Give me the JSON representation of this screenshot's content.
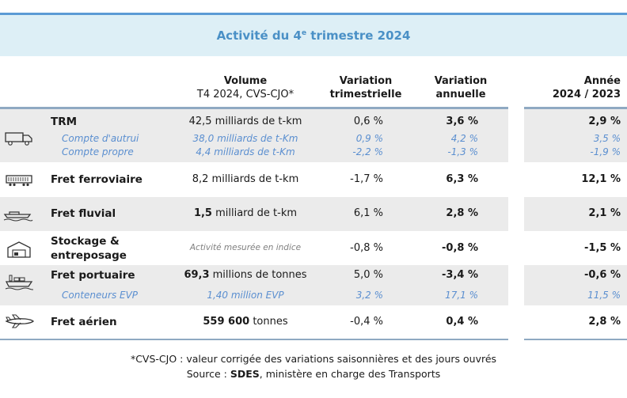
{
  "title": {
    "text": "Activité du 4",
    "sup": "e",
    "rest": " trimestre 2024"
  },
  "headers": {
    "volume": {
      "line1": "Volume",
      "line2": "T4 2024, CVS-CJO*"
    },
    "trim": {
      "line1": "Variation",
      "line2": "trimestrielle"
    },
    "ann": {
      "line1": "Variation",
      "line2": "annuelle"
    },
    "year": {
      "line1": "Année",
      "line2": "2024 / 2023"
    }
  },
  "rows": {
    "trm": {
      "label": "TRM",
      "volume": "42,5 milliards de t-km",
      "trim": "0,6 %",
      "ann": "3,6 %",
      "year": "2,9 %",
      "sub1": {
        "label": "Compte d'autrui",
        "volume": "38,0 milliards de t-Km",
        "trim": "0,9 %",
        "ann": "4,2 %",
        "year": "3,5 %"
      },
      "sub2": {
        "label": "Compte propre",
        "volume": "4,4 milliards de t-Km",
        "trim": "-2,2 %",
        "ann": "-1,3 %",
        "year": "-1,9 %"
      }
    },
    "rail": {
      "label": "Fret ferroviaire",
      "volume": "8,2 milliards de t-km",
      "trim": "-1,7 %",
      "ann": "6,3 %",
      "year": "12,1 %"
    },
    "fluvial": {
      "label": "Fret fluvial",
      "volume_bold": "1,5",
      "volume_rest": " milliard de t-km",
      "trim": "6,1 %",
      "ann": "2,8 %",
      "year": "2,1 %"
    },
    "stock": {
      "label1": "Stockage &",
      "label2": "entreposage",
      "volume_note": "Activité mesurée en indice",
      "trim": "-0,8 %",
      "ann": "-0,8 %",
      "year": "-1,5 %"
    },
    "port": {
      "label": "Fret portuaire",
      "volume_bold": "69,3",
      "volume_rest": " millions de tonnes",
      "trim": "5,0 %",
      "ann": "-3,4 %",
      "year": "-0,6 %",
      "sub": {
        "label": "Conteneurs EVP",
        "volume": "1,40 million EVP",
        "trim": "3,2 %",
        "ann": "17,1 %",
        "year": "11,5 %"
      }
    },
    "air": {
      "label": "Fret aérien",
      "volume_bold": "559 600",
      "volume_rest": " tonnes",
      "trim": "-0,4 %",
      "ann": "0,4 %",
      "year": "2,8 %"
    }
  },
  "footer": {
    "line1": "*CVS-CJO : valeur corrigée des variations saisonnières et des jours ouvrés",
    "line2_pre": "Source : ",
    "line2_bold": "SDES",
    "line2_post": ", ministère en charge des Transports"
  },
  "colors": {
    "accent": "#4a90c6",
    "band": "#ebebeb",
    "title_band": "#ddeff6",
    "sub_text": "#5b8fd0"
  }
}
